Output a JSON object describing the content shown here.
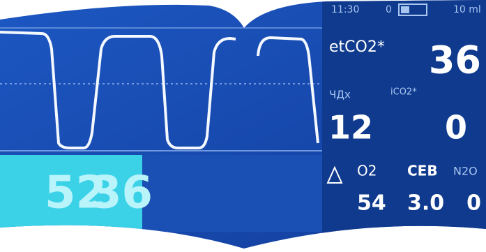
{
  "status_bar": {
    "time": "11:30",
    "count": "0",
    "volume": "10 ml"
  },
  "etco2": {
    "label": "etCO2*",
    "value": "36"
  },
  "resp_rate": {
    "label": "ЧДх",
    "value": "12"
  },
  "ico2": {
    "label": "iCO2*",
    "value": "0"
  },
  "gases": {
    "o2": {
      "label": "O2",
      "value": "54"
    },
    "ceb": {
      "label": "CEB",
      "value": "3.0"
    },
    "n2o": {
      "label": "N2O",
      "value": "0"
    }
  },
  "lower_display": {
    "left": "52",
    "right": "36"
  }
}
